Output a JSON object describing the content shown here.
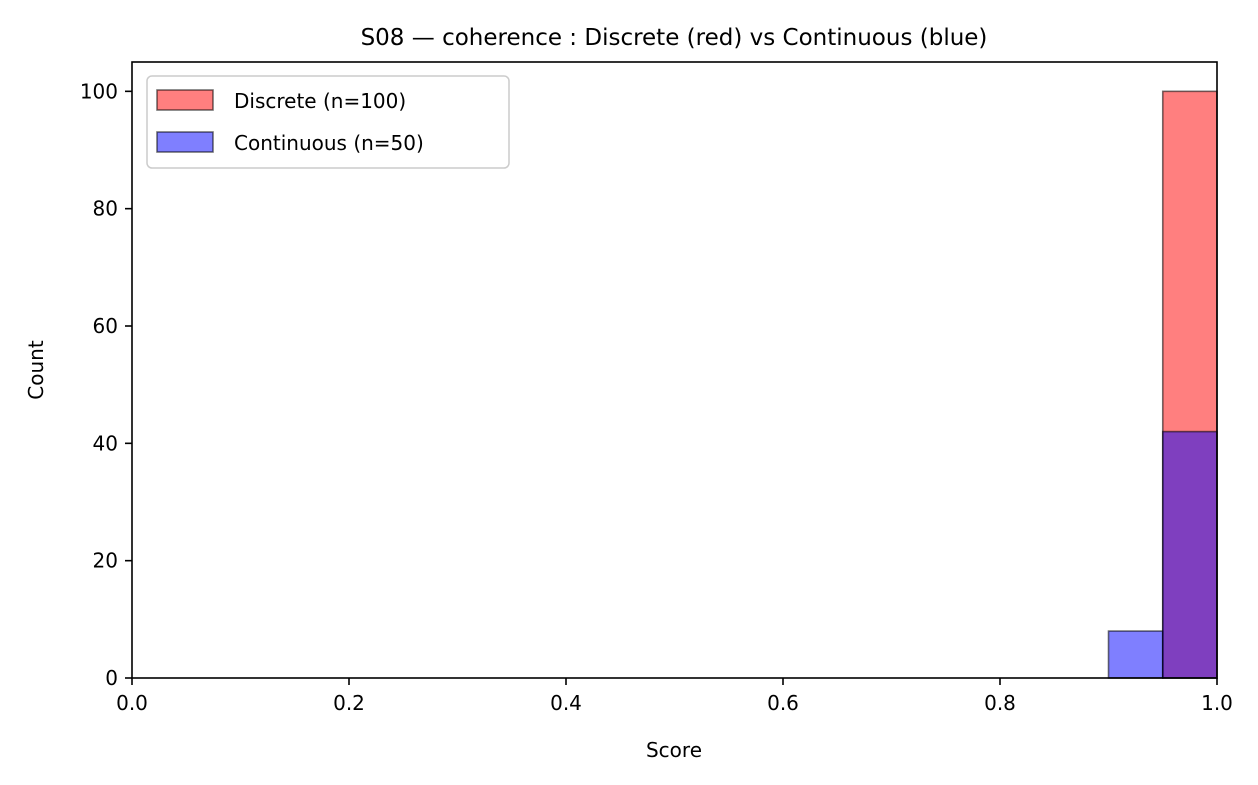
{
  "chart_data": {
    "type": "bar",
    "title": "S08 — coherence : Discrete (red) vs Continuous (blue)",
    "xlabel": "Score",
    "ylabel": "Count",
    "xlim": [
      0.0,
      1.0
    ],
    "ylim": [
      0,
      105
    ],
    "xticks": [
      "0.0",
      "0.2",
      "0.4",
      "0.6",
      "0.8",
      "1.0"
    ],
    "yticks": [
      "0",
      "20",
      "40",
      "60",
      "80",
      "100"
    ],
    "bin_width": 0.05,
    "grid": false,
    "legend_position": "upper-left",
    "series": [
      {
        "name": "Discrete (n=100)",
        "color": "#ff0000",
        "bins": [
          {
            "x0": 0.95,
            "x1": 1.0,
            "count": 100
          }
        ]
      },
      {
        "name": "Continuous (n=50)",
        "color": "#0000ff",
        "bins": [
          {
            "x0": 0.9,
            "x1": 0.95,
            "count": 8
          },
          {
            "x0": 0.95,
            "x1": 1.0,
            "count": 42
          }
        ]
      }
    ]
  }
}
